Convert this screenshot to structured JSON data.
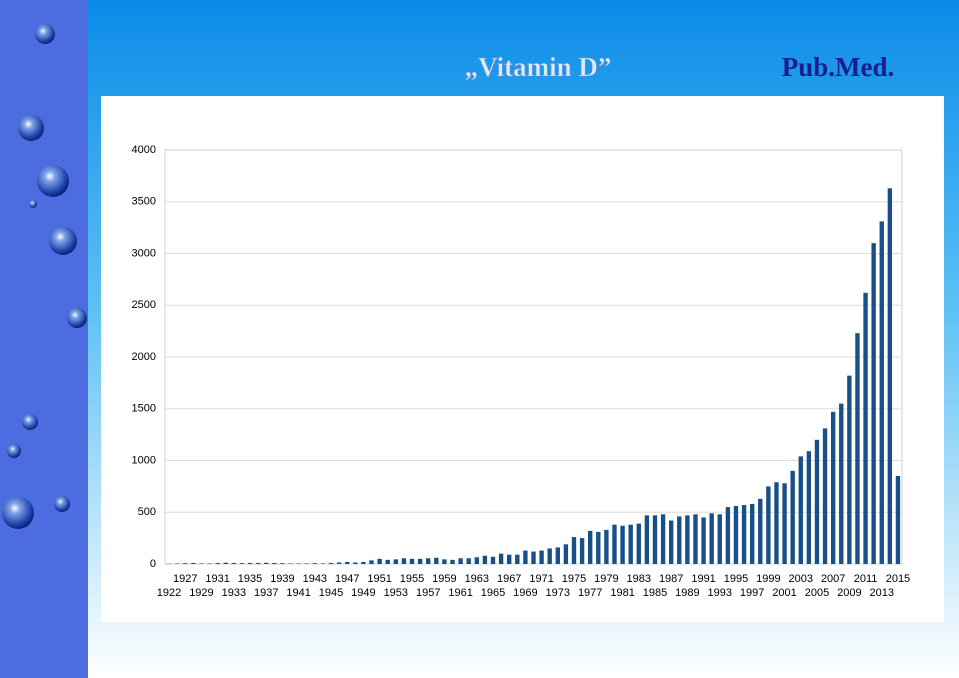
{
  "title": "„Vitamin D”",
  "source": "Pub.Med.",
  "chart_data": {
    "type": "bar",
    "categories": [
      "1922",
      null,
      "1927",
      null,
      "1929",
      null,
      "1931",
      null,
      "1933",
      null,
      "1935",
      null,
      "1937",
      null,
      "1939",
      null,
      "1941",
      null,
      "1943",
      null,
      "1945",
      null,
      "1947",
      null,
      "1949",
      null,
      "1951",
      null,
      "1953",
      null,
      "1955",
      null,
      "1957",
      null,
      "1959",
      null,
      "1961",
      null,
      "1963",
      null,
      "1965",
      null,
      "1967",
      null,
      "1969",
      null,
      "1971",
      null,
      "1973",
      null,
      "1975",
      null,
      "1977",
      null,
      "1979",
      null,
      "1981",
      null,
      "1983",
      null,
      "1985",
      null,
      "1987",
      null,
      "1989",
      null,
      "1991",
      null,
      "1993",
      null,
      "1995",
      null,
      "1997",
      null,
      "1999",
      null,
      "2001",
      null,
      "2003",
      null,
      "2005",
      null,
      "2007",
      null,
      "2009",
      null,
      "2011",
      null,
      "2013",
      null,
      "2015"
    ],
    "values": [
      3,
      5,
      8,
      10,
      5,
      5,
      10,
      12,
      10,
      8,
      10,
      10,
      12,
      10,
      8,
      5,
      5,
      5,
      8,
      5,
      10,
      15,
      20,
      15,
      20,
      35,
      50,
      40,
      45,
      55,
      50,
      50,
      55,
      60,
      45,
      40,
      55,
      55,
      65,
      80,
      70,
      100,
      90,
      90,
      130,
      120,
      130,
      150,
      160,
      190,
      260,
      250,
      320,
      310,
      330,
      380,
      370,
      380,
      390,
      470,
      470,
      480,
      420,
      460,
      470,
      480,
      450,
      490,
      480,
      550,
      560,
      570,
      580,
      630,
      750,
      790,
      780,
      900,
      1040,
      1090,
      1200,
      1310,
      1470,
      1550,
      1820,
      2230,
      2620,
      3100,
      3310,
      3630,
      850
    ],
    "color": "#174f88",
    "ylim": [
      0,
      4000
    ],
    "yticks": [
      0,
      500,
      1000,
      1500,
      2000,
      2500,
      3000,
      3500,
      4000
    ],
    "grid": true
  }
}
